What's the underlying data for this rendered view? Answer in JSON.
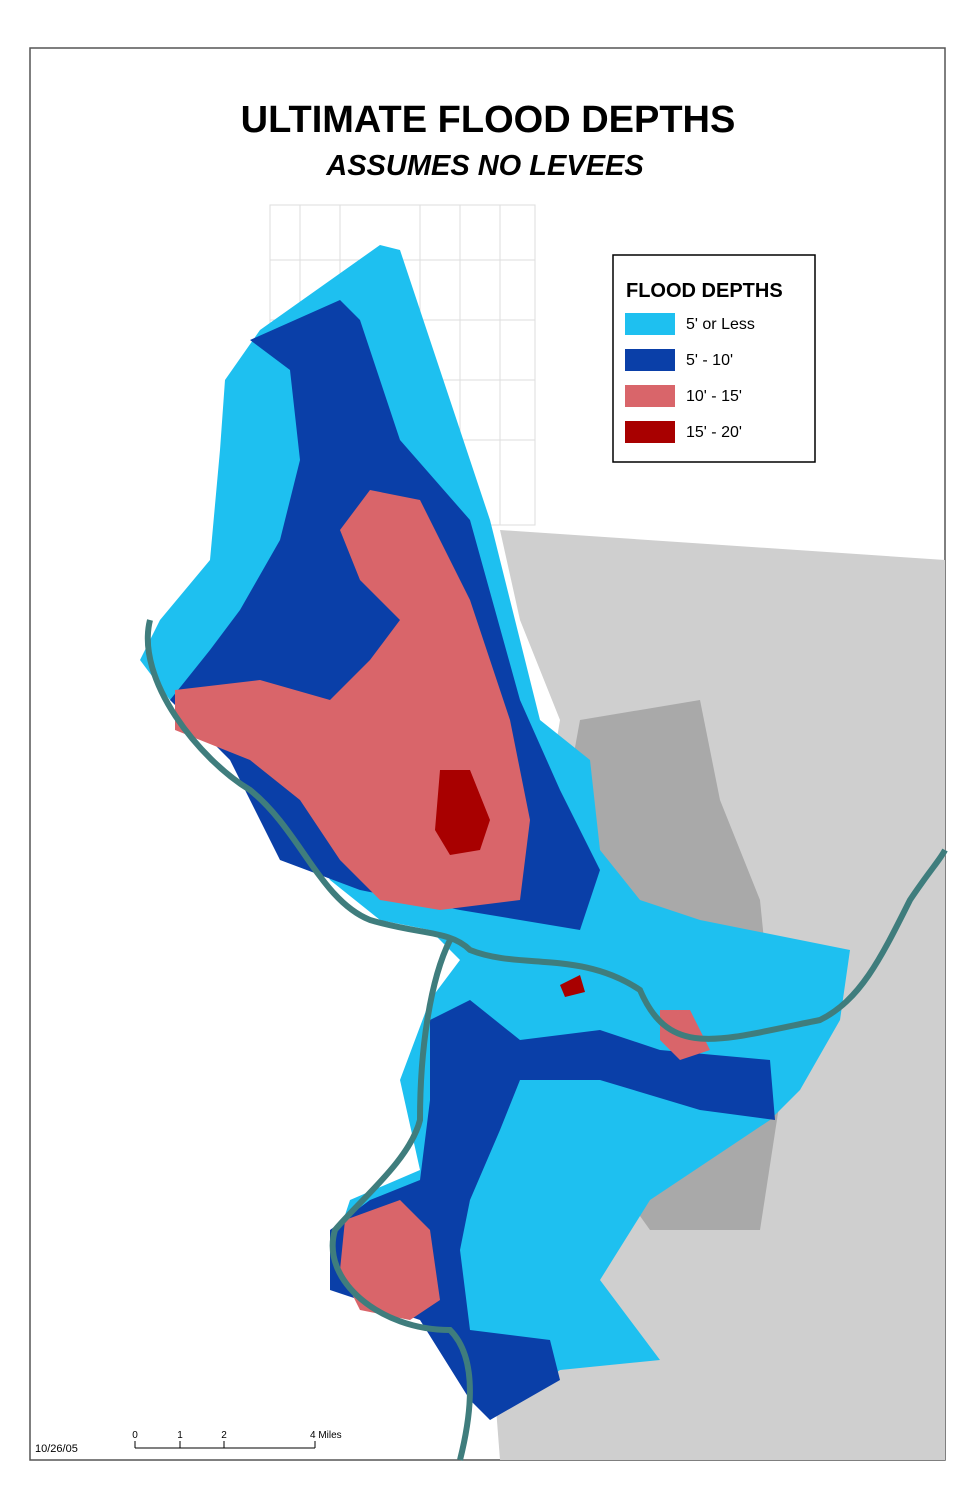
{
  "header": {
    "title": "ULTIMATE FLOOD DEPTHS",
    "subtitle": "ASSUMES NO LEVEES"
  },
  "legend": {
    "title": "FLOOD DEPTHS",
    "items": [
      {
        "label": "5' or Less",
        "color": "#1ec0f0"
      },
      {
        "label": "5' - 10'",
        "color": "#0a3fa8"
      },
      {
        "label": "10' - 15'",
        "color": "#d9656a"
      },
      {
        "label": "15' - 20'",
        "color": "#a80000"
      }
    ]
  },
  "scale_bar": {
    "labels": [
      "0",
      "1",
      "2",
      "4 Miles"
    ]
  },
  "date": "10/26/05"
}
